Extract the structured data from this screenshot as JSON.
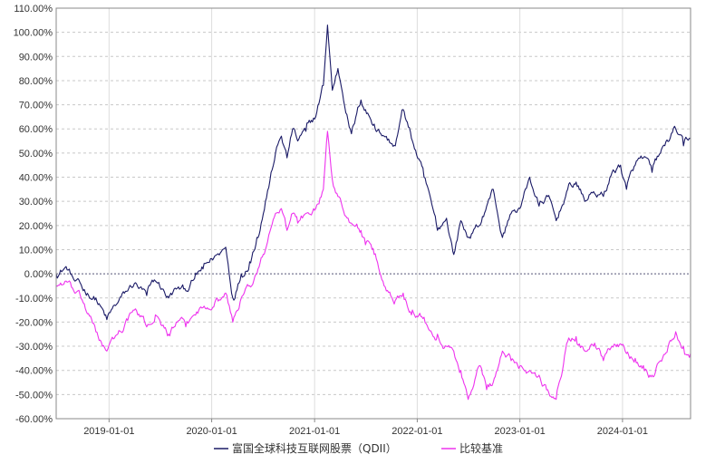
{
  "chart_data": {
    "type": "line",
    "title": "",
    "xlabel": "",
    "ylabel": "",
    "x_ticks": [
      "2019-01-01",
      "2020-01-01",
      "2021-01-01",
      "2022-01-01",
      "2023-01-01",
      "2024-01-01"
    ],
    "y_ticks": [
      "110.00%",
      "100.00%",
      "90.00%",
      "80.00%",
      "70.00%",
      "60.00%",
      "50.00%",
      "40.00%",
      "30.00%",
      "20.00%",
      "10.00%",
      "0.00%",
      "-10.00%",
      "-20.00%",
      "-30.00%",
      "-40.00%",
      "-50.00%",
      "-60.00%"
    ],
    "ylim": [
      -60,
      110
    ],
    "xlim": [
      "2018-06-27",
      "2024-08-30"
    ],
    "y_unit": "%",
    "grid": true,
    "legend_position": "bottom-center",
    "series": [
      {
        "name": "富国全球科技互联网股票（QDII）",
        "color": "#1a1a66",
        "points": [
          [
            "2018-06-27",
            0
          ],
          [
            "2018-08-01",
            3
          ],
          [
            "2018-09-01",
            -3
          ],
          [
            "2018-10-01",
            -7
          ],
          [
            "2018-11-15",
            -10
          ],
          [
            "2018-12-24",
            -19
          ],
          [
            "2019-02-01",
            -12
          ],
          [
            "2019-04-01",
            -4
          ],
          [
            "2019-05-15",
            -9
          ],
          [
            "2019-06-15",
            -3
          ],
          [
            "2019-08-01",
            -10
          ],
          [
            "2019-09-01",
            -6
          ],
          [
            "2019-10-01",
            -7
          ],
          [
            "2019-11-01",
            -2
          ],
          [
            "2019-12-01",
            2
          ],
          [
            "2020-01-20",
            8
          ],
          [
            "2020-02-20",
            11
          ],
          [
            "2020-03-16",
            -10
          ],
          [
            "2020-04-15",
            0
          ],
          [
            "2020-05-15",
            5
          ],
          [
            "2020-06-10",
            15
          ],
          [
            "2020-07-10",
            30
          ],
          [
            "2020-08-15",
            50
          ],
          [
            "2020-09-05",
            57
          ],
          [
            "2020-09-25",
            48
          ],
          [
            "2020-10-15",
            60
          ],
          [
            "2020-11-02",
            55
          ],
          [
            "2020-12-01",
            59
          ],
          [
            "2021-01-05",
            65
          ],
          [
            "2021-02-01",
            78
          ],
          [
            "2021-02-16",
            103
          ],
          [
            "2021-03-05",
            76
          ],
          [
            "2021-03-25",
            85
          ],
          [
            "2021-05-12",
            58
          ],
          [
            "2021-06-15",
            72
          ],
          [
            "2021-07-01",
            68
          ],
          [
            "2021-08-01",
            62
          ],
          [
            "2021-09-05",
            57
          ],
          [
            "2021-10-15",
            53
          ],
          [
            "2021-11-12",
            68
          ],
          [
            "2021-12-15",
            55
          ],
          [
            "2022-01-25",
            40
          ],
          [
            "2022-03-14",
            18
          ],
          [
            "2022-04-15",
            23
          ],
          [
            "2022-05-11",
            8
          ],
          [
            "2022-06-05",
            22
          ],
          [
            "2022-07-01",
            15
          ],
          [
            "2022-08-10",
            20
          ],
          [
            "2022-09-05",
            28
          ],
          [
            "2022-09-28",
            35
          ],
          [
            "2022-10-31",
            15
          ],
          [
            "2022-12-01",
            25
          ],
          [
            "2023-01-05",
            28
          ],
          [
            "2023-02-05",
            40
          ],
          [
            "2023-03-10",
            28
          ],
          [
            "2023-04-10",
            32
          ],
          [
            "2023-05-10",
            22
          ],
          [
            "2023-06-20",
            35
          ],
          [
            "2023-07-20",
            38
          ],
          [
            "2023-08-20",
            30
          ],
          [
            "2023-09-20",
            34
          ],
          [
            "2023-10-25",
            32
          ],
          [
            "2023-11-25",
            42
          ],
          [
            "2023-12-25",
            45
          ],
          [
            "2024-01-15",
            35
          ],
          [
            "2024-02-15",
            45
          ],
          [
            "2024-03-15",
            48
          ],
          [
            "2024-04-15",
            42
          ],
          [
            "2024-05-15",
            50
          ],
          [
            "2024-07-08",
            60
          ],
          [
            "2024-08-05",
            53
          ],
          [
            "2024-08-30",
            56
          ]
        ]
      },
      {
        "name": "比较基准",
        "color": "#ee33ee",
        "points": [
          [
            "2018-06-27",
            -5
          ],
          [
            "2018-08-01",
            -3
          ],
          [
            "2018-09-01",
            -8
          ],
          [
            "2018-10-01",
            -12
          ],
          [
            "2018-11-15",
            -24
          ],
          [
            "2018-12-24",
            -32
          ],
          [
            "2019-02-01",
            -25
          ],
          [
            "2019-04-01",
            -15
          ],
          [
            "2019-05-15",
            -22
          ],
          [
            "2019-06-15",
            -17
          ],
          [
            "2019-08-01",
            -25
          ],
          [
            "2019-09-01",
            -20
          ],
          [
            "2019-10-01",
            -22
          ],
          [
            "2019-11-01",
            -17
          ],
          [
            "2019-12-01",
            -14
          ],
          [
            "2020-01-20",
            -10
          ],
          [
            "2020-02-20",
            -8
          ],
          [
            "2020-03-16",
            -20
          ],
          [
            "2020-04-15",
            -10
          ],
          [
            "2020-05-15",
            -5
          ],
          [
            "2020-06-10",
            0
          ],
          [
            "2020-07-10",
            10
          ],
          [
            "2020-08-15",
            25
          ],
          [
            "2020-09-05",
            27
          ],
          [
            "2020-09-25",
            18
          ],
          [
            "2020-10-15",
            25
          ],
          [
            "2020-11-02",
            21
          ],
          [
            "2020-12-01",
            25
          ],
          [
            "2021-01-05",
            27
          ],
          [
            "2021-02-01",
            35
          ],
          [
            "2021-02-16",
            59
          ],
          [
            "2021-03-05",
            39
          ],
          [
            "2021-03-25",
            32
          ],
          [
            "2021-05-12",
            21
          ],
          [
            "2021-06-15",
            18
          ],
          [
            "2021-07-01",
            12
          ],
          [
            "2021-08-01",
            8
          ],
          [
            "2021-09-05",
            -5
          ],
          [
            "2021-10-15",
            -11
          ],
          [
            "2021-11-12",
            -8
          ],
          [
            "2021-12-15",
            -15
          ],
          [
            "2022-01-25",
            -18
          ],
          [
            "2022-03-14",
            -25
          ],
          [
            "2022-04-15",
            -30
          ],
          [
            "2022-05-11",
            -32
          ],
          [
            "2022-06-05",
            -40
          ],
          [
            "2022-07-01",
            -52
          ],
          [
            "2022-08-10",
            -38
          ],
          [
            "2022-09-05",
            -48
          ],
          [
            "2022-09-28",
            -45
          ],
          [
            "2022-10-31",
            -32
          ],
          [
            "2022-12-01",
            -36
          ],
          [
            "2023-01-05",
            -38
          ],
          [
            "2023-02-05",
            -40
          ],
          [
            "2023-03-10",
            -42
          ],
          [
            "2023-04-10",
            -48
          ],
          [
            "2023-05-10",
            -52
          ],
          [
            "2023-06-20",
            -28
          ],
          [
            "2023-07-20",
            -26
          ],
          [
            "2023-08-20",
            -32
          ],
          [
            "2023-09-20",
            -30
          ],
          [
            "2023-10-25",
            -36
          ],
          [
            "2023-11-25",
            -30
          ],
          [
            "2023-12-25",
            -29
          ],
          [
            "2024-01-15",
            -33
          ],
          [
            "2024-02-15",
            -35
          ],
          [
            "2024-03-15",
            -38
          ],
          [
            "2024-04-15",
            -42
          ],
          [
            "2024-05-15",
            -36
          ],
          [
            "2024-07-08",
            -24
          ],
          [
            "2024-08-05",
            -30
          ],
          [
            "2024-08-30",
            -33
          ]
        ]
      }
    ]
  }
}
